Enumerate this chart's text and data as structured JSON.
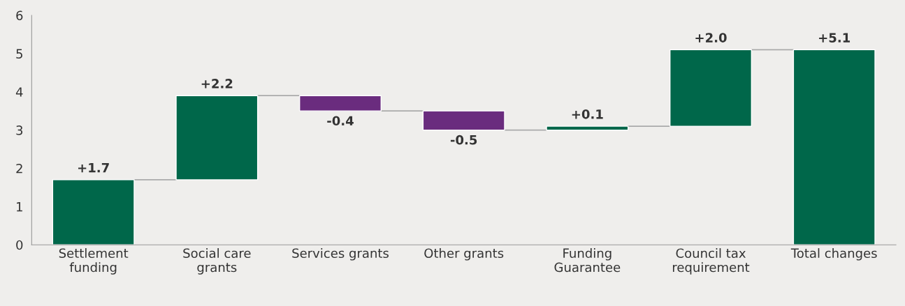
{
  "chart_data": {
    "type": "bar",
    "categories": [
      "Settlement\nfunding",
      "Social care\ngrants",
      "Services grants",
      "Other grants",
      "Funding\nGuarantee",
      "Council tax\nrequirement",
      "Total changes"
    ],
    "values": [
      1.7,
      2.2,
      -0.4,
      -0.5,
      0.1,
      2.0,
      5.1
    ],
    "base": [
      0,
      1.7,
      3.9,
      3.5,
      3.0,
      3.1,
      0
    ],
    "colors": [
      "#00674a",
      "#00674a",
      "#6a2c7e",
      "#6a2c7e",
      "#00674a",
      "#00674a",
      "#00674a"
    ],
    "value_labels": [
      "+1.7",
      "+2.2",
      "-0.4",
      "-0.5",
      "+0.1",
      "+2.0",
      "+5.1"
    ],
    "ylim": [
      0,
      6
    ],
    "yticks": [
      0,
      1,
      2,
      3,
      4,
      5,
      6
    ],
    "grid": false,
    "legend": false
  }
}
